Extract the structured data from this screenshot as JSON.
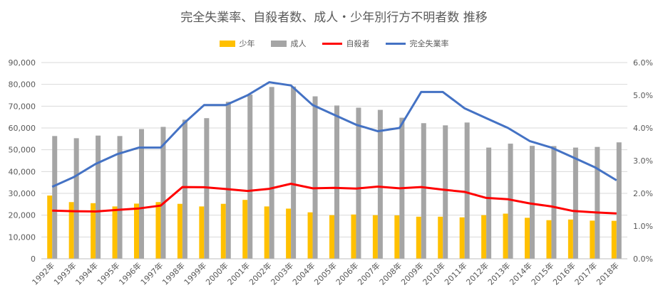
{
  "chart_data": {
    "type": "bar",
    "title": "完全失業率、自殺者数、成人・少年別行方不明者数 推移",
    "categories": [
      "1992年",
      "1993年",
      "1994年",
      "1995年",
      "1996年",
      "1997年",
      "1998年",
      "1999年",
      "2000年",
      "2001年",
      "2002年",
      "2003年",
      "2004年",
      "2005年",
      "2006年",
      "2007年",
      "2008年",
      "2009年",
      "2010年",
      "2011年",
      "2012年",
      "2013年",
      "2014年",
      "2015年",
      "2016年",
      "2017年",
      "2018年"
    ],
    "series": [
      {
        "name": "少年",
        "kind": "bar",
        "axis": "left",
        "color": "#FFC000",
        "values": [
          29000,
          26000,
          25500,
          24000,
          25300,
          26000,
          25200,
          24000,
          25200,
          27000,
          24000,
          23000,
          21300,
          20000,
          20300,
          20000,
          19900,
          19300,
          19300,
          19000,
          20000,
          20700,
          18800,
          17700,
          18000,
          17500,
          17400
        ]
      },
      {
        "name": "成人",
        "kind": "bar",
        "axis": "left",
        "color": "#A5A5A5",
        "values": [
          56300,
          55300,
          56500,
          56300,
          59500,
          60500,
          63800,
          64500,
          72000,
          75300,
          78800,
          79000,
          74500,
          70300,
          69300,
          68300,
          64700,
          62200,
          61200,
          62500,
          51000,
          52800,
          51800,
          51700,
          51000,
          51300,
          53400
        ]
      },
      {
        "name": "自殺者",
        "kind": "line",
        "axis": "left",
        "color": "#FF0000",
        "values": [
          22100,
          21800,
          21700,
          22400,
          23100,
          24400,
          32900,
          32800,
          32000,
          31100,
          32100,
          34400,
          32300,
          32500,
          32200,
          33100,
          32300,
          32900,
          31700,
          30700,
          27900,
          27300,
          25400,
          24000,
          21900,
          21300,
          20800
        ]
      },
      {
        "name": "完全失業率",
        "kind": "line",
        "axis": "right",
        "color": "#4472C4",
        "values": [
          2.2,
          2.5,
          2.9,
          3.2,
          3.4,
          3.4,
          4.1,
          4.7,
          4.7,
          5.0,
          5.4,
          5.3,
          4.7,
          4.4,
          4.1,
          3.9,
          4.0,
          5.1,
          5.1,
          4.6,
          4.3,
          4.0,
          3.6,
          3.4,
          3.1,
          2.8,
          2.4
        ]
      }
    ],
    "y_left": {
      "min": 0,
      "max": 90000,
      "step": 10000,
      "tick_labels": [
        "0",
        "10,000",
        "20,000",
        "30,000",
        "40,000",
        "50,000",
        "60,000",
        "70,000",
        "80,000",
        "90,000"
      ]
    },
    "y_right": {
      "min": 0,
      "max": 6,
      "step": 1,
      "tick_labels": [
        "0.0%",
        "1.0%",
        "2.0%",
        "3.0%",
        "4.0%",
        "5.0%",
        "6.0%"
      ]
    },
    "grid": true,
    "legend_position": "top"
  }
}
